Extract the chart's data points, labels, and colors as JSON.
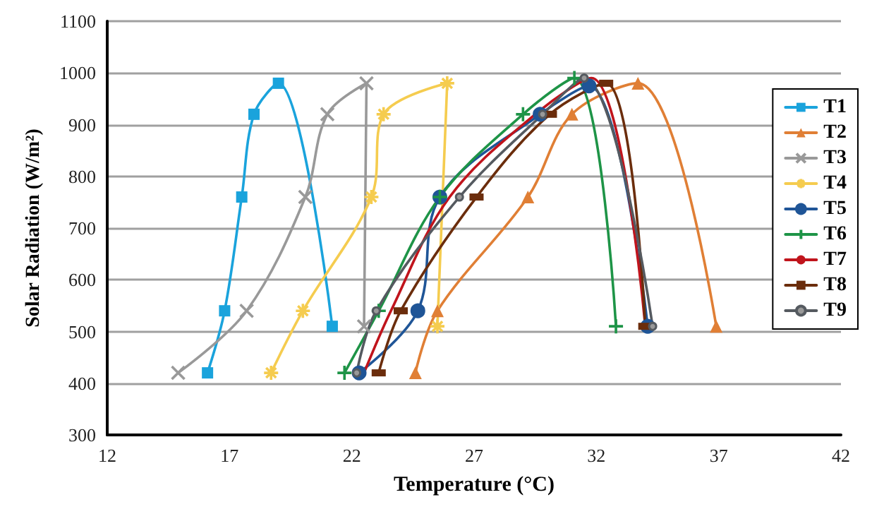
{
  "chart_data": {
    "type": "line",
    "xlabel": "Temperature (°C)",
    "ylabel": "Solar Radiation (W/m²)",
    "xlim": [
      12,
      42
    ],
    "xticks": [
      12,
      17,
      22,
      27,
      32,
      37,
      42
    ],
    "ylim": [
      300,
      1100
    ],
    "yticks": [
      300,
      400,
      500,
      600,
      700,
      800,
      900,
      1000,
      1100
    ],
    "grid": "y",
    "legend": "right",
    "series": [
      {
        "name": "T1",
        "color": "#1aa3dc",
        "marker": "square",
        "x": [
          16.1,
          16.8,
          17.5,
          18.0,
          19.0,
          21.2
        ],
        "values": [
          420,
          540,
          760,
          920,
          980,
          510
        ]
      },
      {
        "name": "T2",
        "color": "#e07f35",
        "marker": "triangle",
        "x": [
          24.6,
          25.5,
          29.2,
          31.0,
          33.7,
          36.9
        ],
        "values": [
          420,
          540,
          760,
          920,
          980,
          510
        ]
      },
      {
        "name": "T3",
        "color": "#999999",
        "marker": "x",
        "x": [
          14.9,
          17.7,
          20.1,
          21.0,
          22.6,
          22.5
        ],
        "values": [
          420,
          540,
          760,
          920,
          980,
          510
        ]
      },
      {
        "name": "T4",
        "color": "#f5cc4f",
        "marker": "cross",
        "x": [
          18.7,
          20.0,
          22.8,
          23.3,
          25.9,
          25.5
        ],
        "values": [
          420,
          540,
          760,
          920,
          980,
          510
        ]
      },
      {
        "name": "T5",
        "color": "#1f5597",
        "marker": "circle",
        "x": [
          22.3,
          24.7,
          25.6,
          29.7,
          31.7,
          34.1
        ],
        "values": [
          420,
          540,
          760,
          920,
          975,
          510
        ]
      },
      {
        "name": "T6",
        "color": "#1e9447",
        "marker": "plus",
        "x": [
          21.7,
          23.1,
          25.6,
          29.0,
          31.1,
          32.8
        ],
        "values": [
          420,
          540,
          760,
          920,
          990,
          510
        ]
      },
      {
        "name": "T7",
        "color": "#c0141c",
        "marker": "none",
        "x": [
          22.5,
          23.6,
          26.0,
          29.5,
          31.8,
          34.0
        ],
        "values": [
          420,
          540,
          760,
          920,
          990,
          510
        ]
      },
      {
        "name": "T8",
        "color": "#6b2d0c",
        "marker": "square",
        "x": [
          23.1,
          24.0,
          27.1,
          30.1,
          32.4,
          34.0
        ],
        "values": [
          420,
          540,
          760,
          920,
          980,
          510
        ]
      },
      {
        "name": "T9",
        "color": "#555a60",
        "marker": "dot",
        "x": [
          22.2,
          23.0,
          26.4,
          29.8,
          31.5,
          34.3
        ],
        "values": [
          420,
          540,
          760,
          920,
          990,
          510
        ]
      }
    ]
  }
}
